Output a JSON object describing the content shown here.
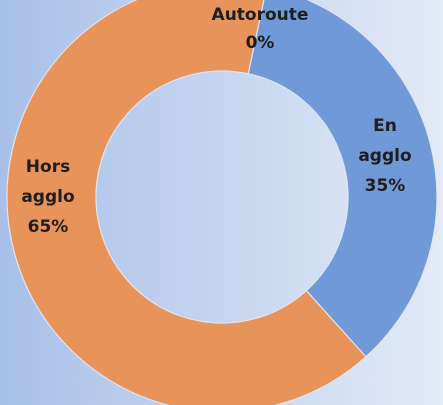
{
  "chart_data": {
    "type": "donut",
    "categories": [
      "Autoroute",
      "En agglo",
      "Hors agglo"
    ],
    "values": [
      0,
      35,
      65
    ],
    "value_labels": [
      "0%",
      "35%",
      "65%"
    ],
    "colors": [
      "#9fb8e3",
      "#7099d7",
      "#e8935a"
    ]
  }
}
